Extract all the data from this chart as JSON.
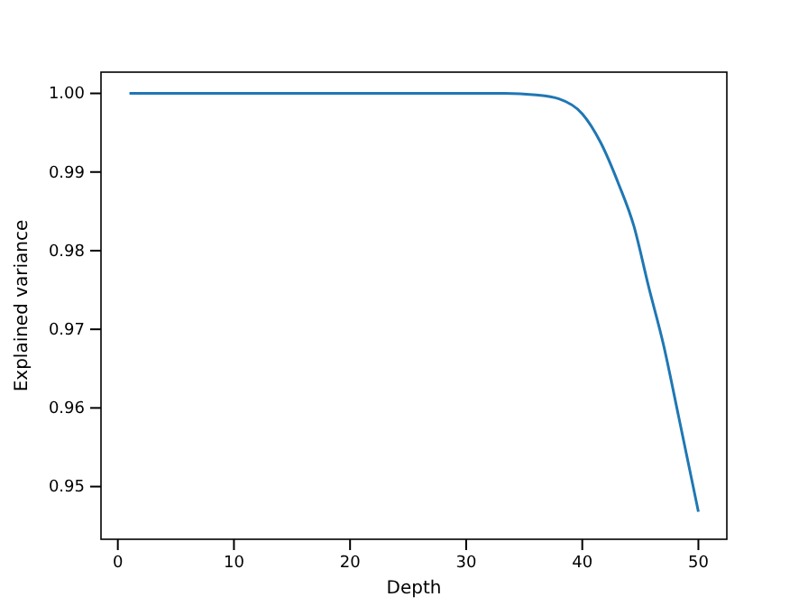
{
  "chart_data": {
    "type": "line",
    "xlabel": "Depth",
    "ylabel": "Explained variance",
    "x": [
      1,
      10,
      20,
      30,
      33.3,
      36,
      38,
      40,
      41.6,
      43.15,
      44.45,
      45.7,
      47,
      48.3,
      50
    ],
    "series": [
      {
        "color": "#1f77b4",
        "values": [
          1.0,
          1.0,
          1.0,
          1.0,
          1.0,
          0.9998,
          0.9993,
          0.9974,
          0.9937,
          0.9884,
          0.9831,
          0.9755,
          0.968,
          0.9589,
          0.9468
        ]
      }
    ],
    "xlim": [
      -1.45,
      52.45
    ],
    "ylim": [
      0.9433,
      1.0027
    ],
    "xticks": [
      0,
      10,
      20,
      30,
      40,
      50
    ],
    "yticks": [
      {
        "value": 0.95,
        "label": "0.95"
      },
      {
        "value": 0.96,
        "label": "0.96"
      },
      {
        "value": 0.97,
        "label": "0.97"
      },
      {
        "value": 0.98,
        "label": "0.98"
      },
      {
        "value": 0.99,
        "label": "0.99"
      },
      {
        "value": 1.0,
        "label": "1.00"
      }
    ],
    "grid": false,
    "marker": "none",
    "line_style": "solid"
  }
}
